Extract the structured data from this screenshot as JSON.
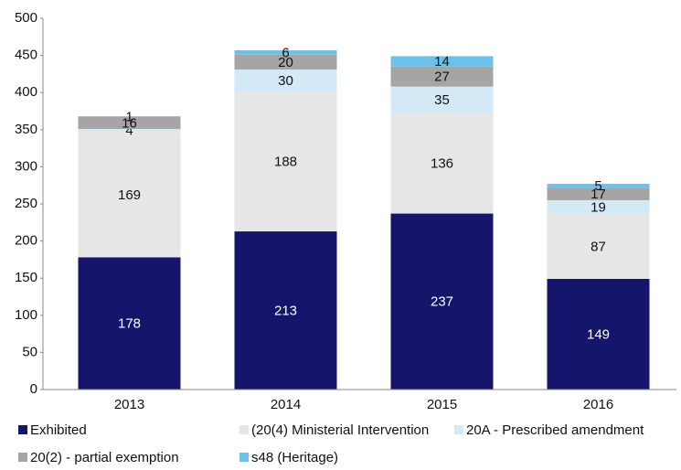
{
  "chart_data": {
    "type": "stacked_bar",
    "categories": [
      "2013",
      "2014",
      "2015",
      "2016"
    ],
    "series": [
      {
        "name": "Exhibited",
        "color": "#15166b",
        "values": [
          178,
          213,
          237,
          149
        ]
      },
      {
        "name": "(20(4) Ministerial Intervention",
        "color": "#e6e6e6",
        "values": [
          169,
          188,
          136,
          87
        ]
      },
      {
        "name": "20A - Prescribed amendment",
        "color": "#d3e9f6",
        "values": [
          4,
          30,
          35,
          19
        ]
      },
      {
        "name": "20(2) - partial exemption",
        "color": "#a5a5a5",
        "values": [
          16,
          20,
          27,
          17
        ]
      },
      {
        "name": "s48 (Heritage)",
        "color": "#6cc0ea",
        "values": [
          1,
          6,
          14,
          5
        ]
      }
    ],
    "ylim": [
      0,
      500
    ],
    "yticks": [
      0,
      50,
      100,
      150,
      200,
      250,
      300,
      350,
      400,
      450,
      500
    ],
    "grid": false,
    "legend": "bottom"
  }
}
